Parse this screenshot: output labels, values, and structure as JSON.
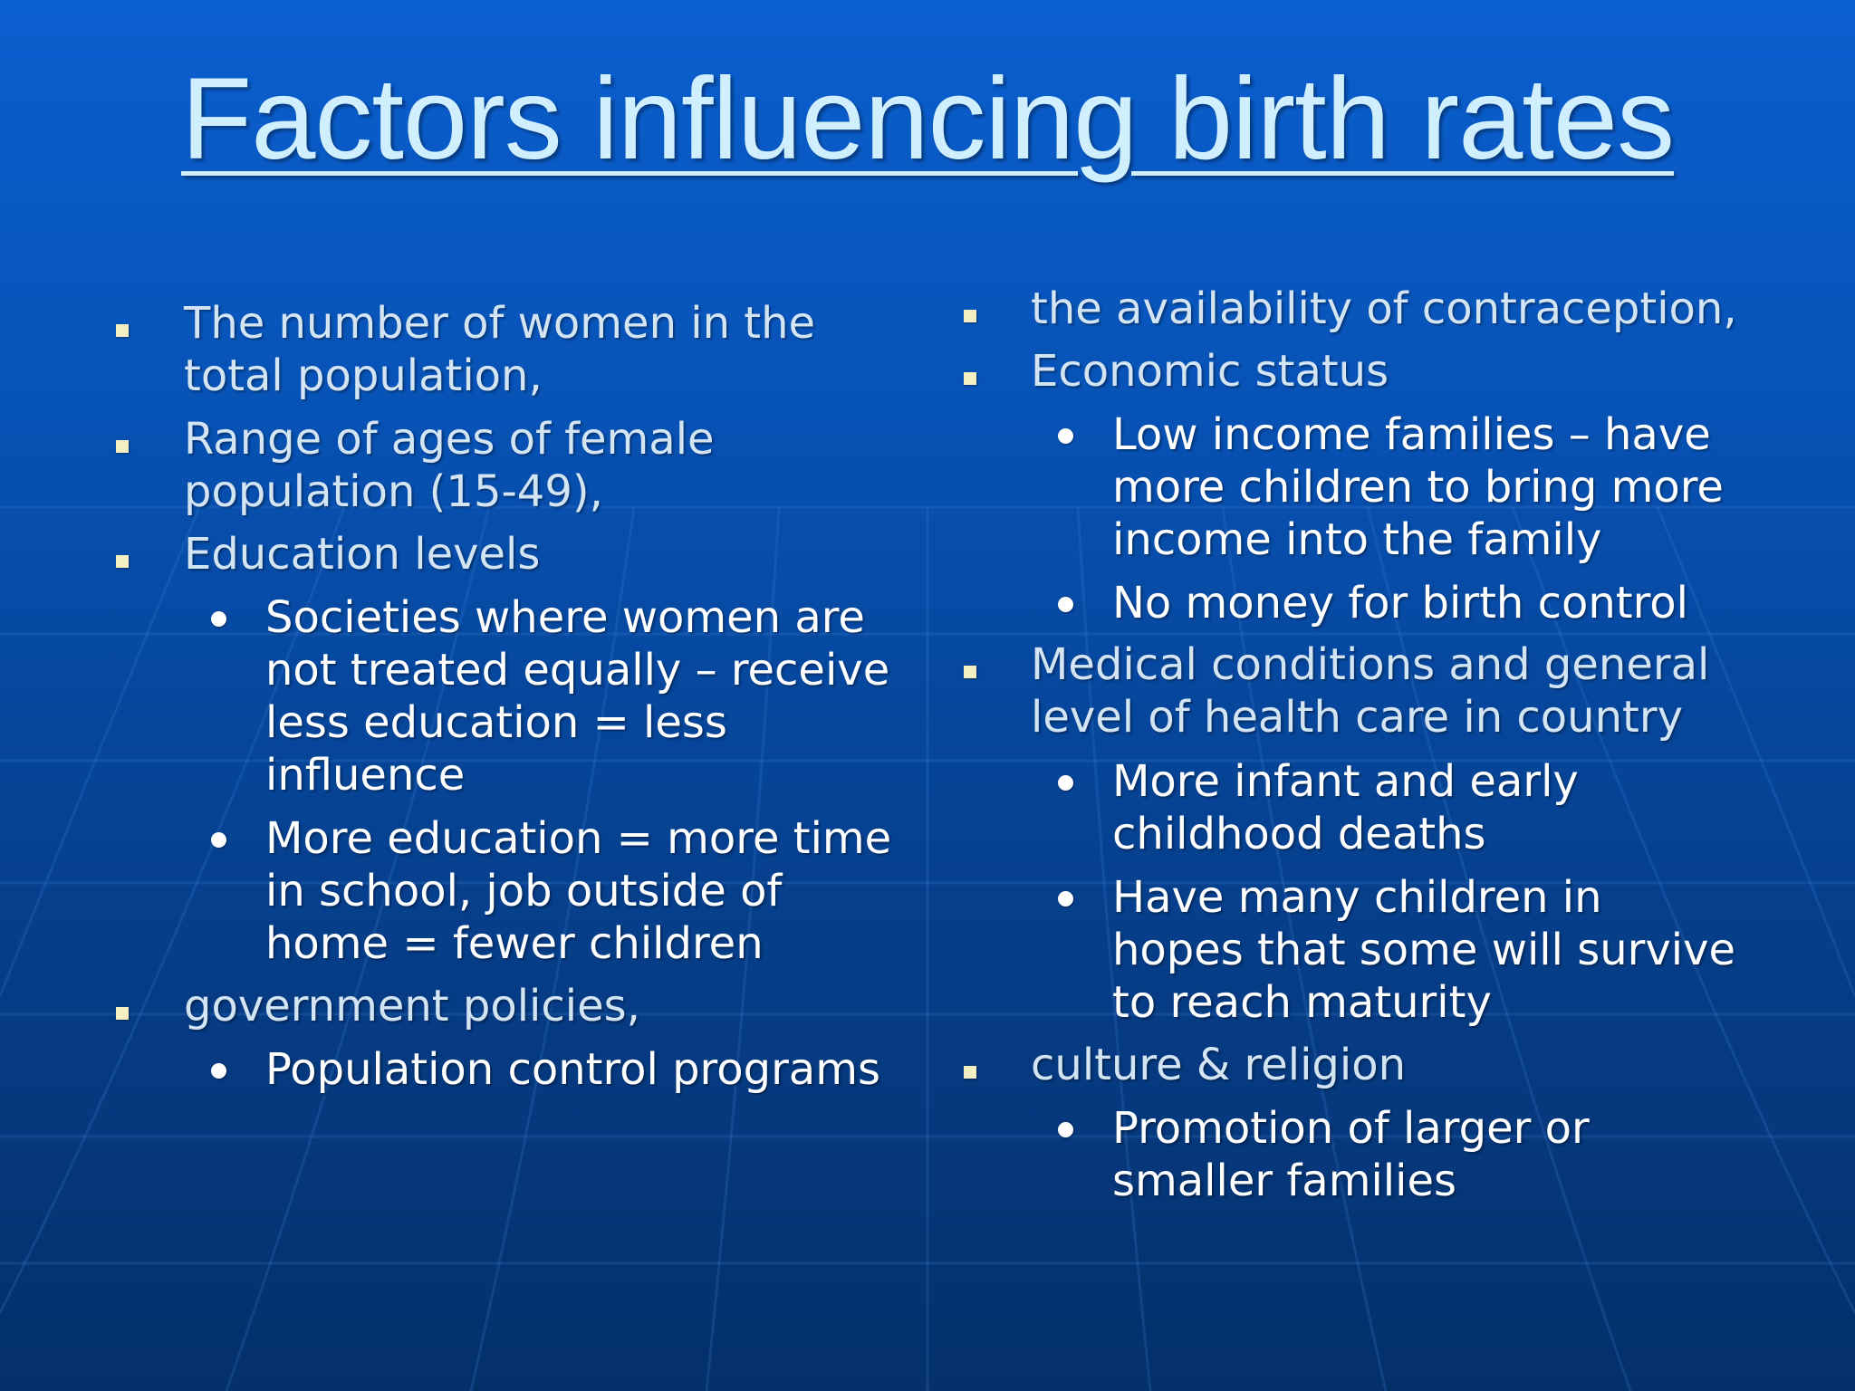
{
  "slide": {
    "title": "Factors influencing birth rates",
    "left_column": [
      {
        "text": "The number of women in the\ntotal population,"
      },
      {
        "text": "Range of ages of female\npopulation (15-49),"
      },
      {
        "text": "Education levels"
      },
      {
        "text": "Societies where women are\nnot treated equally – receive\nless education = less\ninfluence"
      },
      {
        "text": "More education = more time\nin school, job outside of\nhome = fewer children"
      },
      {
        "text": "government policies,"
      },
      {
        "text": "Population control programs"
      }
    ],
    "right_column": [
      {
        "text": "the availability of contraception,"
      },
      {
        "text": "Economic status"
      },
      {
        "text": "Low income families – have\nmore children to bring more\nincome into the family"
      },
      {
        "text": "No money for birth control"
      },
      {
        "text": "Medical conditions and general\nlevel of health care in country"
      },
      {
        "text": "More infant and early\nchildhood deaths"
      },
      {
        "text": "Have many children in\nhopes that some will survive\nto reach maturity"
      },
      {
        "text": "culture & religion"
      },
      {
        "text": "Promotion of larger or\nsmaller families"
      }
    ],
    "colors": {
      "title": "#cfeefe",
      "level1_text": "#d3e4f3",
      "level2_text": "#ffffff",
      "square_bullet": "#f3efc3",
      "background_top": "#0a5fcf",
      "background_bottom": "#04306a"
    },
    "icons": {
      "level1_bullet": "square-bullet-icon",
      "level2_bullet": "round-bullet-icon"
    }
  }
}
